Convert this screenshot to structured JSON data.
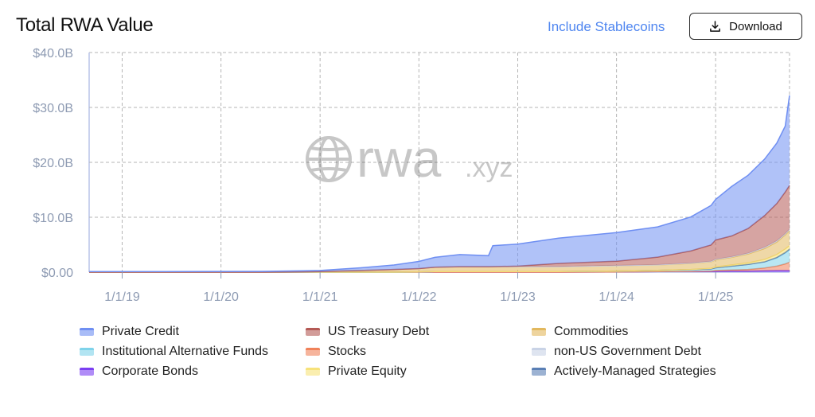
{
  "header": {
    "title": "Total RWA Value",
    "stablecoins_link": "Include Stablecoins",
    "download_label": "Download",
    "download_icon": "download-icon"
  },
  "watermark": {
    "text_main": "rwa",
    "text_suffix": ".xyz",
    "icon": "globe-icon"
  },
  "chart_data": {
    "type": "area",
    "stacked": true,
    "title": "Total RWA Value",
    "xlabel": "",
    "ylabel": "",
    "x_ticks": [
      "1/1/19",
      "1/1/20",
      "1/1/21",
      "1/1/22",
      "1/1/23",
      "1/1/24",
      "1/1/25"
    ],
    "y_ticks": [
      "$0.00",
      "$10.0B",
      "$20.0B",
      "$30.0B",
      "$40.0B"
    ],
    "ylim": [
      0,
      40
    ],
    "xlim": [
      "2018-09-01",
      "2025-10-01"
    ],
    "grid": true,
    "legend_position": "bottom",
    "x": [
      "2018-09-01",
      "2019-06-01",
      "2020-06-01",
      "2021-01-01",
      "2021-06-01",
      "2021-10-01",
      "2022-01-01",
      "2022-03-01",
      "2022-06-01",
      "2022-09-15",
      "2022-10-01",
      "2023-01-01",
      "2023-06-01",
      "2024-01-01",
      "2024-06-01",
      "2024-10-01",
      "2024-12-15",
      "2025-01-01",
      "2025-03-01",
      "2025-05-01",
      "2025-07-01",
      "2025-08-15",
      "2025-09-15",
      "2025-10-01"
    ],
    "series": [
      {
        "name": "Corporate Bonds",
        "color": "#7b3ff2",
        "values": [
          0,
          0,
          0,
          0,
          0,
          0,
          0,
          0,
          0,
          0,
          0,
          0,
          0,
          0.05,
          0.1,
          0.1,
          0.1,
          0.15,
          0.2,
          0.2,
          0.25,
          0.3,
          0.3,
          0.3
        ]
      },
      {
        "name": "Stocks",
        "color": "#f0825a",
        "values": [
          0,
          0,
          0,
          0,
          0,
          0,
          0,
          0,
          0,
          0,
          0,
          0,
          0,
          0,
          0.02,
          0.05,
          0.1,
          0.15,
          0.2,
          0.3,
          0.5,
          0.8,
          1.2,
          1.5
        ]
      },
      {
        "name": "Institutional Alternative Funds",
        "color": "#7fd3ea",
        "values": [
          0,
          0,
          0,
          0,
          0,
          0,
          0.05,
          0.1,
          0.1,
          0.1,
          0.1,
          0.1,
          0.1,
          0.15,
          0.2,
          0.3,
          0.4,
          0.5,
          0.7,
          0.9,
          1.1,
          1.5,
          2.0,
          2.3
        ]
      },
      {
        "name": "Actively-Managed Strategies",
        "color": "#5a7fb5",
        "values": [
          0,
          0,
          0,
          0,
          0,
          0,
          0,
          0,
          0,
          0,
          0,
          0,
          0,
          0,
          0,
          0,
          0,
          0,
          0,
          0,
          0.05,
          0.1,
          0.1,
          0.1
        ]
      },
      {
        "name": "Private Equity",
        "color": "#f7e27a",
        "values": [
          0,
          0,
          0,
          0,
          0,
          0,
          0,
          0,
          0,
          0,
          0,
          0,
          0,
          0,
          0,
          0.05,
          0.1,
          0.15,
          0.2,
          0.3,
          0.4,
          0.5,
          0.6,
          0.6
        ]
      },
      {
        "name": "Commodities",
        "color": "#e2b85e",
        "values": [
          0,
          0,
          0,
          0.1,
          0.3,
          0.5,
          0.6,
          0.8,
          0.9,
          0.9,
          0.9,
          0.9,
          0.9,
          1.0,
          1.0,
          1.1,
          1.2,
          1.3,
          1.4,
          1.6,
          2.0,
          2.3,
          2.6,
          2.8
        ]
      },
      {
        "name": "non-US Government Debt",
        "color": "#c9d3e6",
        "values": [
          0,
          0,
          0,
          0,
          0,
          0,
          0,
          0,
          0,
          0,
          0,
          0,
          0,
          0,
          0.02,
          0.05,
          0.05,
          0.1,
          0.1,
          0.15,
          0.2,
          0.2,
          0.2,
          0.2
        ]
      },
      {
        "name": "US Treasury Debt",
        "color": "#b45a55",
        "values": [
          0,
          0,
          0,
          0,
          0,
          0,
          0,
          0,
          0,
          0,
          0.02,
          0.1,
          0.6,
          0.8,
          1.4,
          2.2,
          3.0,
          3.5,
          3.8,
          4.5,
          5.8,
          6.8,
          7.6,
          8.0
        ]
      },
      {
        "name": "Private Credit",
        "color": "#6f8ff2",
        "values": [
          0.1,
          0.1,
          0.15,
          0.2,
          0.5,
          0.8,
          1.3,
          1.8,
          2.2,
          2.0,
          3.8,
          4.0,
          4.6,
          5.2,
          5.5,
          6.2,
          7.2,
          7.4,
          9.0,
          9.7,
          10.3,
          11.0,
          12.0,
          16.4
        ]
      }
    ]
  },
  "legend": [
    {
      "label": "Private Credit",
      "color": "#6f8ff2"
    },
    {
      "label": "US Treasury Debt",
      "color": "#b45a55"
    },
    {
      "label": "Commodities",
      "color": "#e2b85e"
    },
    {
      "label": "Institutional Alternative Funds",
      "color": "#7fd3ea"
    },
    {
      "label": "Stocks",
      "color": "#f0825a"
    },
    {
      "label": "non-US Government Debt",
      "color": "#c9d3e6"
    },
    {
      "label": "Corporate Bonds",
      "color": "#7b3ff2"
    },
    {
      "label": "Private Equity",
      "color": "#f7e27a"
    },
    {
      "label": "Actively-Managed Strategies",
      "color": "#5a7fb5"
    }
  ]
}
